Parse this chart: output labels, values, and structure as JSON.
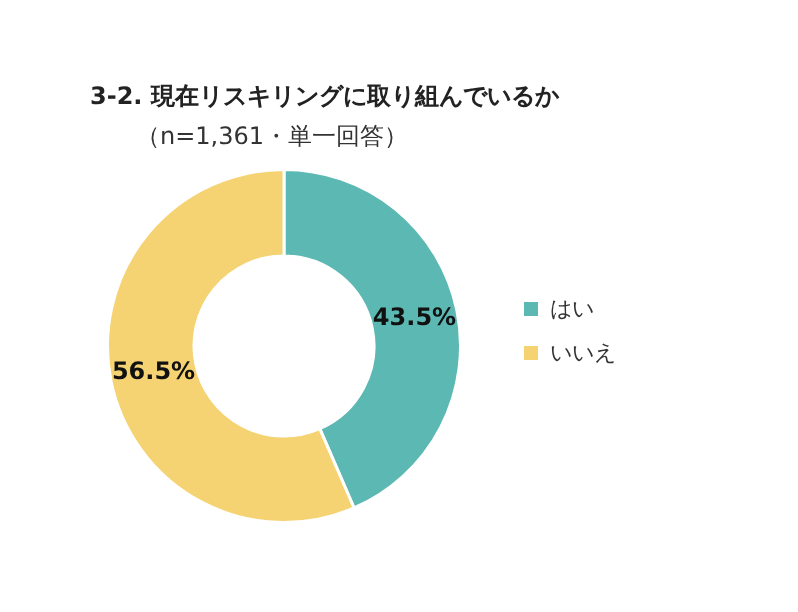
{
  "chart_data": {
    "type": "donut",
    "title": "3-2. 現在リスキリングに取り組んでいるか",
    "subtitle": "（n=1,361・単一回答）",
    "categories": [
      "はい",
      "いいえ"
    ],
    "values": [
      43.5,
      56.5
    ],
    "colors": [
      "#5cb8b2",
      "#f5d372"
    ],
    "value_labels": [
      "43.5%",
      "56.5%"
    ],
    "legend": "right"
  }
}
